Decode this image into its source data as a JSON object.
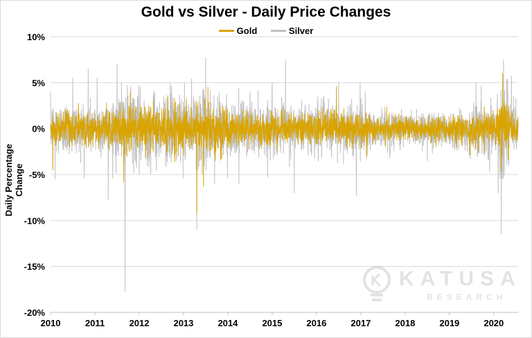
{
  "chart_data": {
    "type": "line",
    "title": "Gold vs Silver - Daily Price Changes",
    "xlabel": "",
    "ylabel": "Daily Percentage Change",
    "x_ticks": [
      "2010",
      "2011",
      "2012",
      "2013",
      "2014",
      "2015",
      "2016",
      "2017",
      "2018",
      "2019",
      "2020"
    ],
    "y_ticks": [
      "10%",
      "5%",
      "0%",
      "-5%",
      "-10%",
      "-15%",
      "-20%"
    ],
    "xlim": [
      2010,
      2020.55
    ],
    "ylim": [
      -20,
      10
    ],
    "grid": "horizontal",
    "legend_position": "top-center",
    "series": [
      {
        "name": "Silver",
        "color": "#bfbfbf",
        "typical_daily_range_pct": [
          -3,
          3
        ],
        "notable_points": [
          {
            "x": 2010.1,
            "y": -5.5
          },
          {
            "x": 2010.5,
            "y": 5.5
          },
          {
            "x": 2010.85,
            "y": 6.5
          },
          {
            "x": 2011.05,
            "y": 5.5
          },
          {
            "x": 2011.3,
            "y": -7.8
          },
          {
            "x": 2011.5,
            "y": 7.0
          },
          {
            "x": 2011.6,
            "y": 5.0
          },
          {
            "x": 2011.68,
            "y": -17.7
          },
          {
            "x": 2012.0,
            "y": -5.0
          },
          {
            "x": 2012.7,
            "y": 5.0
          },
          {
            "x": 2013.3,
            "y": -11.0
          },
          {
            "x": 2013.5,
            "y": 7.7
          },
          {
            "x": 2013.7,
            "y": -6.0
          },
          {
            "x": 2014.25,
            "y": -6.0
          },
          {
            "x": 2014.5,
            "y": 4.0
          },
          {
            "x": 2015.0,
            "y": 5.0
          },
          {
            "x": 2015.3,
            "y": 7.4
          },
          {
            "x": 2015.5,
            "y": -7.0
          },
          {
            "x": 2016.5,
            "y": 5.0
          },
          {
            "x": 2016.9,
            "y": -7.3
          },
          {
            "x": 2017.1,
            "y": 4.0
          },
          {
            "x": 2018.5,
            "y": -3.5
          },
          {
            "x": 2019.6,
            "y": 5.0
          },
          {
            "x": 2020.1,
            "y": -7.0
          },
          {
            "x": 2020.17,
            "y": -11.5
          },
          {
            "x": 2020.22,
            "y": 7.5
          },
          {
            "x": 2020.4,
            "y": 5.7
          }
        ]
      },
      {
        "name": "Gold",
        "color": "#d9a400",
        "typical_daily_range_pct": [
          -2,
          2
        ],
        "notable_points": [
          {
            "x": 2010.05,
            "y": -4.5
          },
          {
            "x": 2011.65,
            "y": -5.8
          },
          {
            "x": 2011.8,
            "y": 4.0
          },
          {
            "x": 2013.3,
            "y": -9.2
          },
          {
            "x": 2013.45,
            "y": -6.3
          },
          {
            "x": 2013.55,
            "y": 4.5
          },
          {
            "x": 2016.45,
            "y": 4.6
          },
          {
            "x": 2020.17,
            "y": -4.6
          },
          {
            "x": 2020.2,
            "y": 6.0
          }
        ]
      }
    ]
  },
  "watermark": {
    "name": "KATUSA",
    "sub": "RESEARCH"
  }
}
